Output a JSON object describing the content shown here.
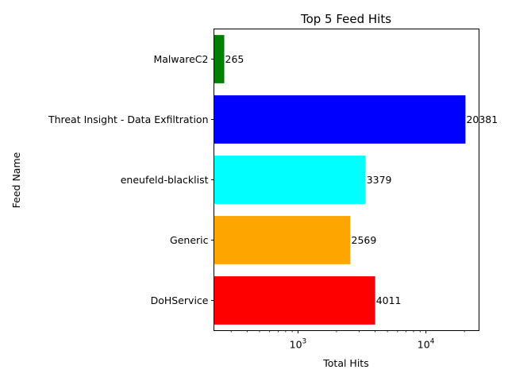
{
  "chart_data": {
    "type": "bar",
    "orientation": "horizontal",
    "title": "Top 5 Feed Hits",
    "xlabel": "Total Hits",
    "ylabel": "Feed Name",
    "xscale": "log",
    "xlim": [
      220,
      26000
    ],
    "grid": false,
    "categories": [
      "DoHService",
      "Generic",
      "eneufeld-blacklist",
      "Threat Insight - Data Exfiltration",
      "MalwareC2"
    ],
    "values": [
      4011,
      2569,
      3379,
      20381,
      265
    ],
    "data_labels": [
      "4011",
      "2569",
      "3379",
      "20381",
      "265"
    ],
    "colors": [
      "#ff0000",
      "#ffa500",
      "#00ffff",
      "#0000ff",
      "#008000"
    ],
    "x_ticks": [
      {
        "value": 1000,
        "base": "10",
        "exp": "3"
      },
      {
        "value": 10000,
        "base": "10",
        "exp": "4"
      }
    ]
  }
}
